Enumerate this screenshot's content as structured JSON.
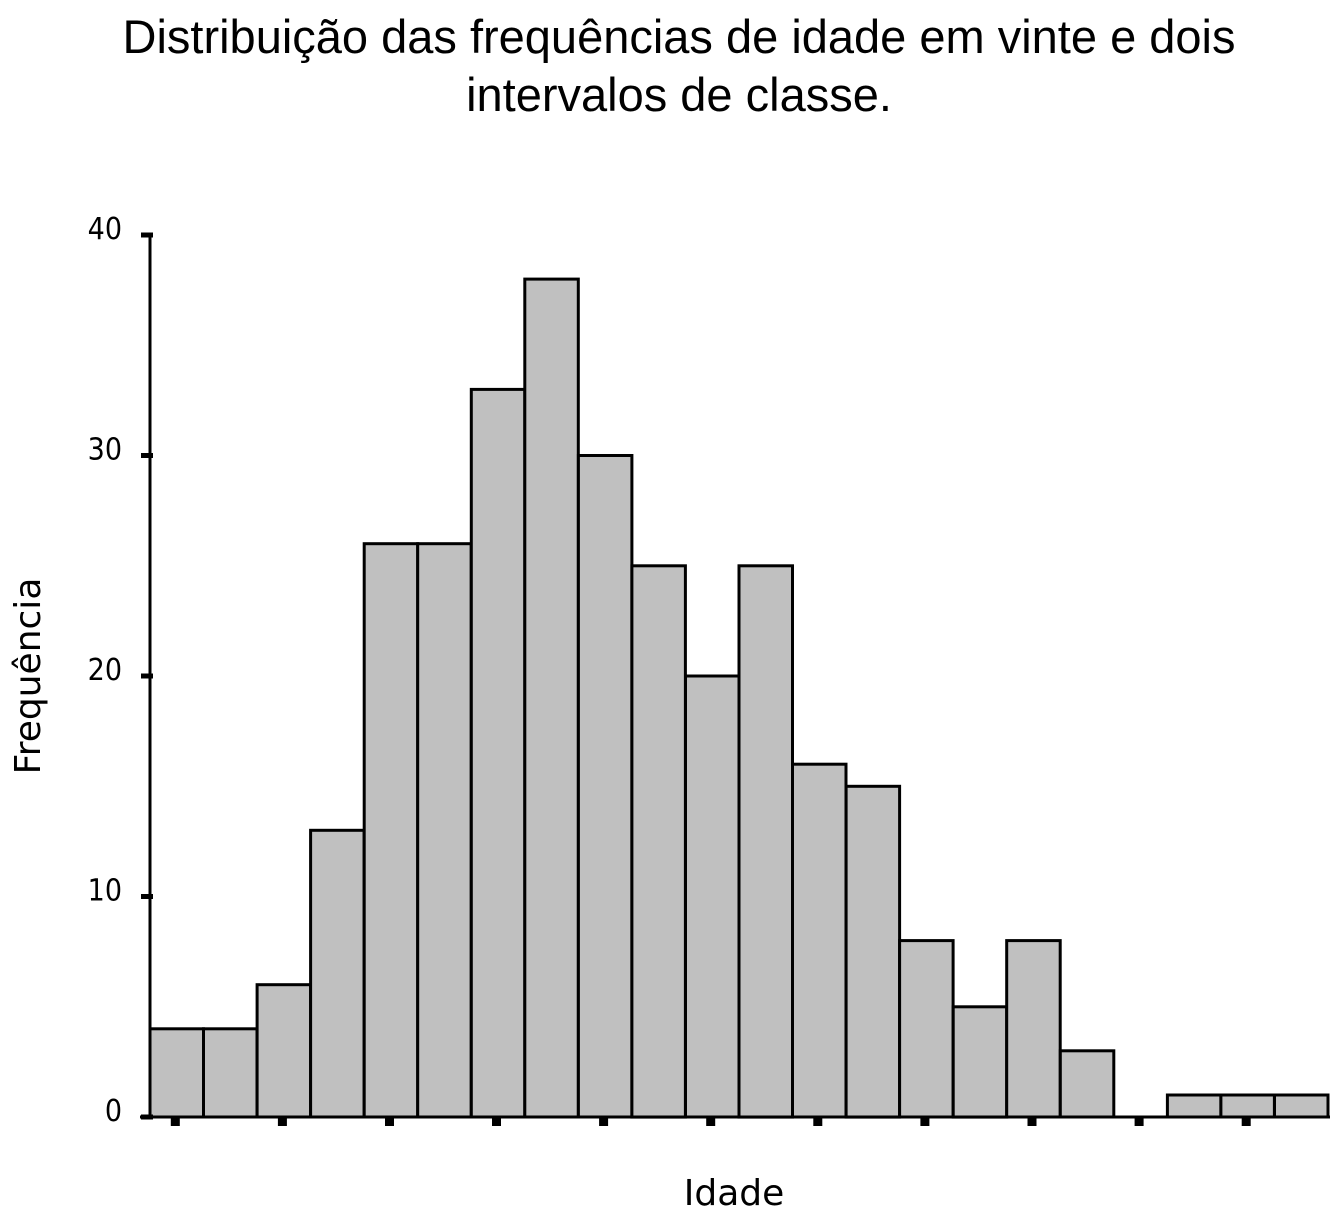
{
  "chart_data": {
    "type": "bar",
    "title": "Distribuição das frequências de idade em vinte e dois intervalos de classe.",
    "xlabel": "Idade",
    "ylabel": "Frequência",
    "ylim": [
      0,
      40
    ],
    "yticks": [
      "0",
      "10",
      "20",
      "30",
      "40"
    ],
    "values": [
      4,
      4,
      6,
      13,
      26,
      26,
      33,
      38,
      30,
      25,
      20,
      25,
      16,
      15,
      8,
      5,
      8,
      3,
      0,
      1,
      1,
      1
    ],
    "bar_color": "#c0c0c0",
    "grid": false
  }
}
